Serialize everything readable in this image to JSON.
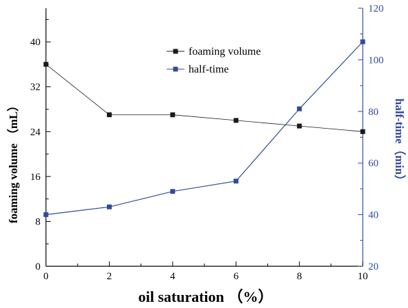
{
  "chart_data": {
    "type": "line",
    "x": [
      0,
      2,
      4,
      6,
      8,
      10
    ],
    "xlabel": "oil saturation （%）",
    "xlim": [
      0,
      10
    ],
    "xticks": [
      0,
      2,
      4,
      6,
      8,
      10
    ],
    "ylabel_left": "foaming volume （mL）",
    "ylim_left": [
      0,
      46
    ],
    "yticks_left": [
      0,
      8,
      16,
      24,
      32,
      40
    ],
    "ylabel_right": "half-time（min）",
    "ylim_right": [
      20,
      120
    ],
    "yticks_right": [
      20,
      40,
      60,
      80,
      100,
      120
    ],
    "grid": false,
    "legend_position": "top-center",
    "series": [
      {
        "name": "foaming volume",
        "axis": "left",
        "color": "#1a1a1a",
        "marker": "square",
        "values": [
          36,
          27,
          27,
          26,
          25,
          24
        ]
      },
      {
        "name": "half-time",
        "axis": "right",
        "color": "#2f4a9c",
        "marker": "square",
        "values": [
          40,
          43,
          49,
          53,
          81,
          107
        ]
      }
    ],
    "colors": {
      "axis_left": "#000000",
      "axis_right": "#2f4a9c"
    }
  }
}
